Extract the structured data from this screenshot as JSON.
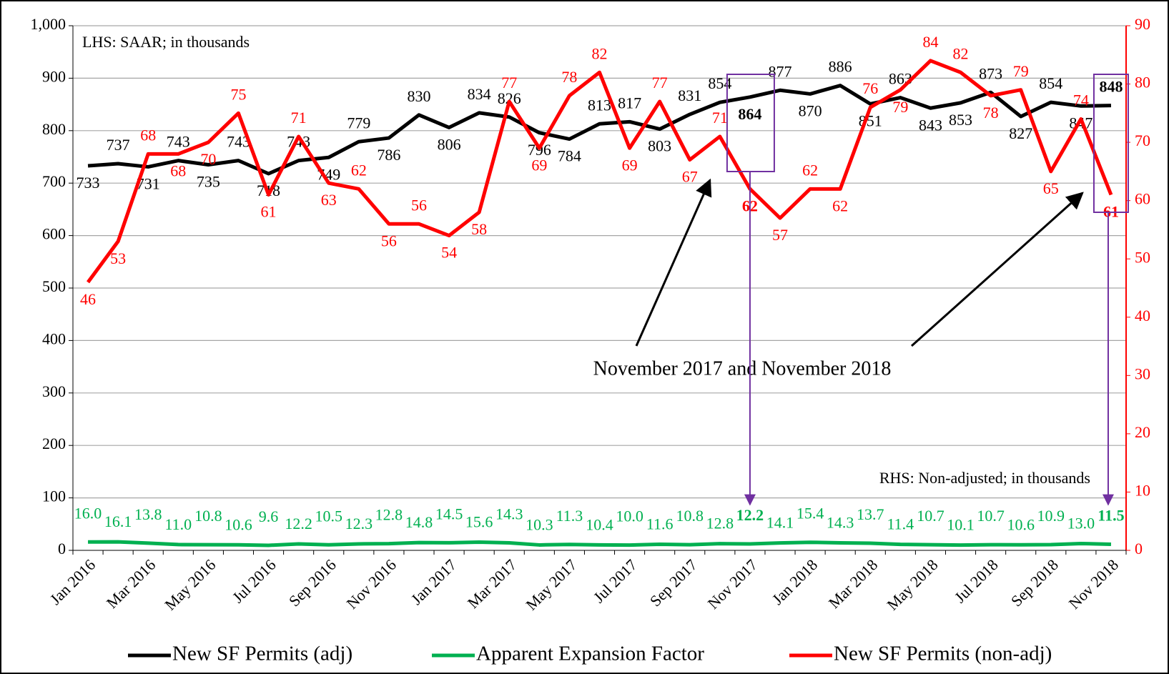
{
  "chart_data": {
    "type": "line",
    "categories": [
      "Jan 2016",
      null,
      "Mar 2016",
      null,
      "May 2016",
      null,
      "Jul 2016",
      null,
      "Sep 2016",
      null,
      "Nov 2016",
      null,
      "Jan 2017",
      null,
      "Mar 2017",
      null,
      "May 2017",
      null,
      "Jul 2017",
      null,
      "Sep 2017",
      null,
      "Nov 2017",
      null,
      "Jan 2018",
      null,
      "Mar 2018",
      null,
      "May 2018",
      null,
      "Jul 2018",
      null,
      "Sep 2018",
      null,
      "Nov 2018"
    ],
    "series": [
      {
        "name": "New SF Permits (adj)",
        "color": "#000000",
        "axis": "y",
        "values": [
          733,
          737,
          731,
          743,
          735,
          743,
          718,
          743,
          749,
          779,
          786,
          830,
          806,
          834,
          826,
          796,
          784,
          813,
          817,
          803,
          831,
          854,
          864,
          877,
          870,
          886,
          851,
          863,
          843,
          853,
          873,
          827,
          854,
          847,
          848
        ]
      },
      {
        "name": "Apparent Expansion Factor",
        "color": "#00b050",
        "axis": "y",
        "values": [
          16.0,
          16.1,
          13.8,
          11.0,
          10.8,
          10.6,
          9.6,
          12.2,
          10.5,
          12.3,
          12.8,
          14.8,
          14.5,
          15.6,
          14.3,
          10.3,
          11.3,
          10.4,
          10.0,
          11.6,
          10.8,
          12.8,
          12.2,
          14.1,
          15.4,
          14.3,
          13.7,
          11.4,
          10.7,
          10.1,
          10.7,
          10.6,
          10.9,
          13.0,
          11.5
        ],
        "value_labels": [
          "16.0",
          "16.1",
          "13.8",
          "11.0",
          "10.8",
          "10.6",
          "9.6",
          "12.2",
          "10.5",
          "12.3",
          "12.8",
          "14.8",
          "14.5",
          "15.6",
          "14.3",
          "10.3",
          "11.3",
          "10.4",
          "10.0",
          "11.6",
          "10.8",
          "12.8",
          "12.2",
          "14.1",
          "15.4",
          "14.3",
          "13.7",
          "11.4",
          "10.7",
          "10.1",
          "10.7",
          "10.6",
          "10.9",
          "13.0",
          "11.5"
        ]
      },
      {
        "name": "New SF Permits (non-adj)",
        "color": "#ff0000",
        "axis": "y2",
        "values": [
          46,
          53,
          68,
          68,
          70,
          75,
          61,
          71,
          63,
          62,
          56,
          56,
          54,
          58,
          77,
          69,
          78,
          82,
          69,
          77,
          67,
          71,
          62,
          57,
          62,
          62,
          76,
          79,
          84,
          82,
          78,
          79,
          65,
          74,
          61
        ]
      }
    ],
    "ylim": [
      0,
      1000
    ],
    "yticks": [
      0,
      100,
      200,
      300,
      400,
      500,
      600,
      700,
      800,
      900,
      {
        "value": 1000,
        "label": "1,000"
      }
    ],
    "y2lim": [
      0,
      90
    ],
    "y2ticks": [
      0,
      10,
      20,
      30,
      40,
      50,
      60,
      70,
      80,
      90
    ],
    "y2color": "#ff0000",
    "grid": true,
    "legend": "bottom",
    "annotations": [
      "LHS: SAAR;  in thousands",
      "RHS: Non-adjusted; in thousands",
      "November 2017 and November 2018"
    ]
  }
}
